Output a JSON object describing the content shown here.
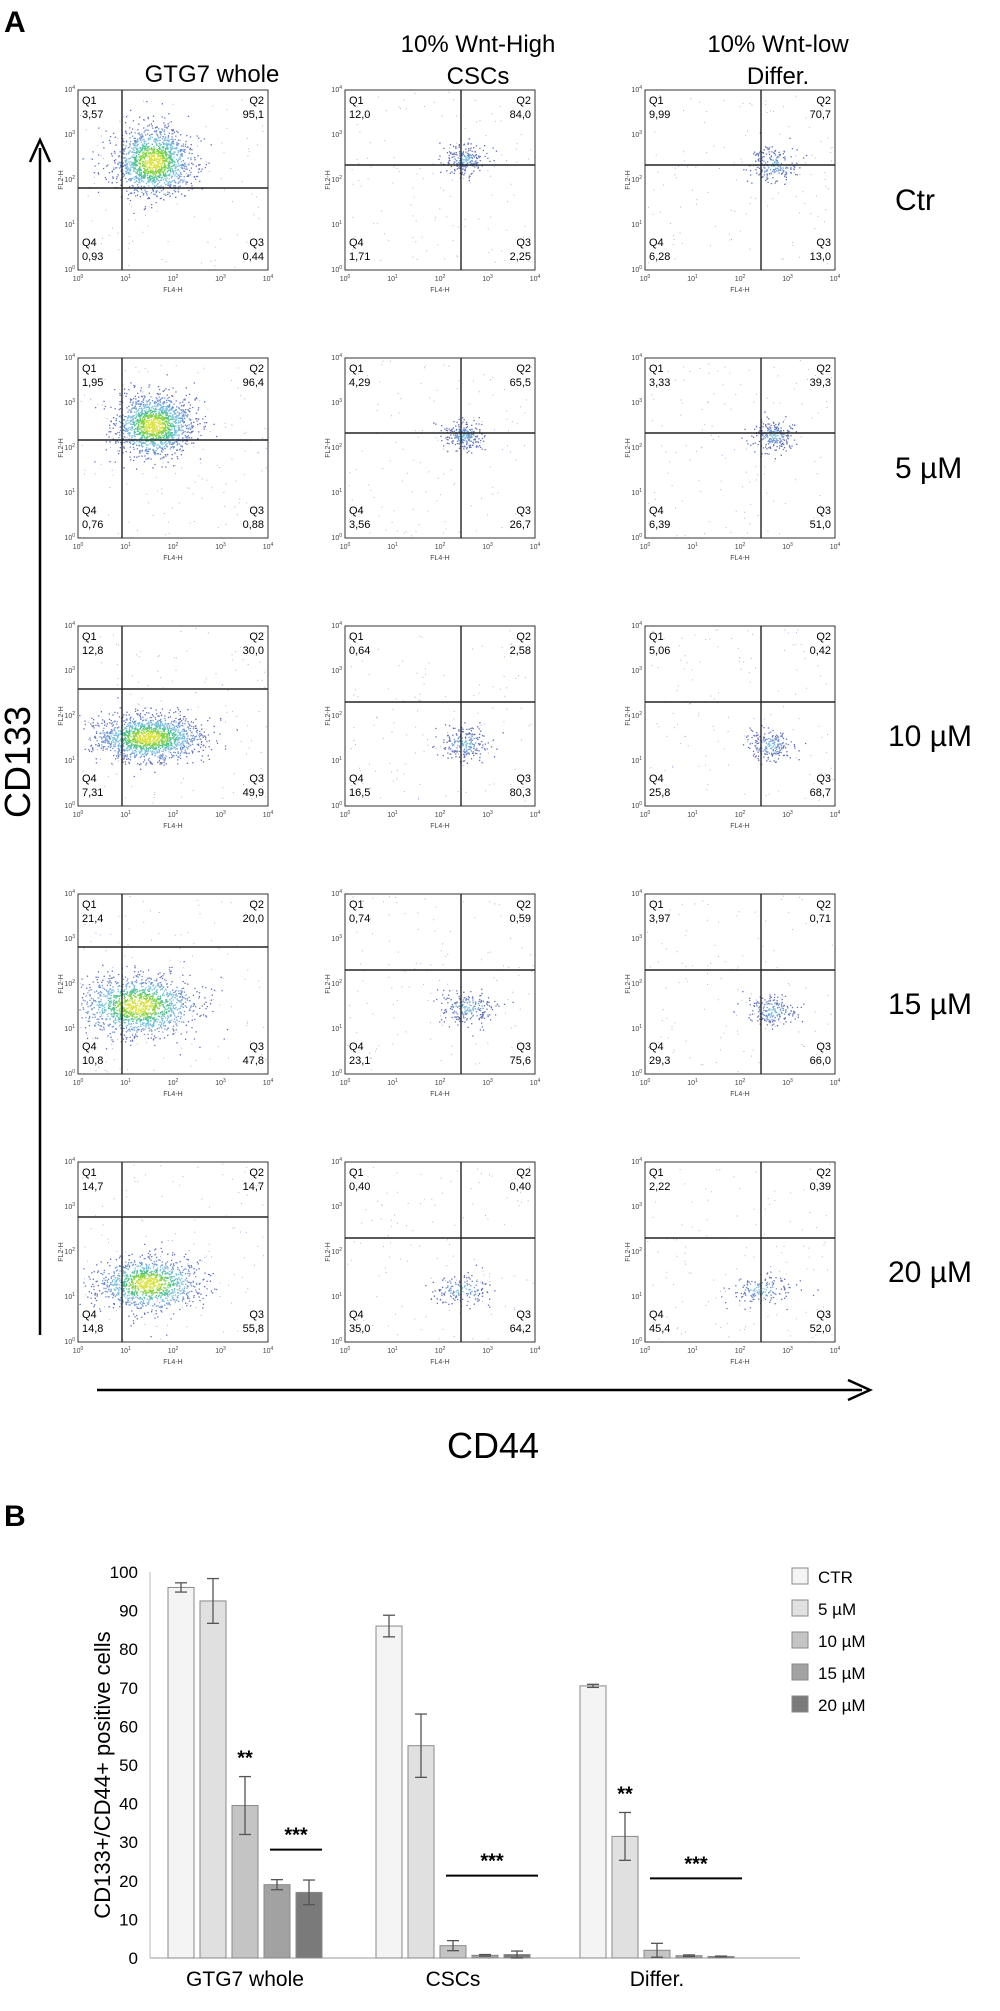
{
  "panel_a": {
    "letter": "A",
    "column_headers": [
      [
        "GTG7 whole"
      ],
      [
        "10% Wnt-High",
        "CSCs"
      ],
      [
        "10% Wnt-low",
        "Differ."
      ]
    ],
    "row_labels": [
      "Ctr",
      "5 µM",
      "10 µM",
      "15 µM",
      "20 µM"
    ],
    "y_axis_label": "CD133",
    "x_axis_label": "CD44",
    "plot_xlabel": "FL4-H",
    "plot_ylabel": "FL2-H",
    "tick_exponents": [
      "0",
      "1",
      "2",
      "3",
      "4"
    ],
    "quadrant_names": [
      "Q1",
      "Q2",
      "Q3",
      "Q4"
    ],
    "plots": [
      [
        {
          "q1": "3,57",
          "q2": "95,1",
          "q3": "0,44",
          "q4": "0,93"
        },
        {
          "q1": "12,0",
          "q2": "84,0",
          "q3": "2,25",
          "q4": "1,71"
        },
        {
          "q1": "9,99",
          "q2": "70,7",
          "q3": "13,0",
          "q4": "6,28"
        }
      ],
      [
        {
          "q1": "1,95",
          "q2": "96,4",
          "q3": "0,88",
          "q4": "0,76"
        },
        {
          "q1": "4,29",
          "q2": "65,5",
          "q3": "26,7",
          "q4": "3,56"
        },
        {
          "q1": "3,33",
          "q2": "39,3",
          "q3": "51,0",
          "q4": "6,39"
        }
      ],
      [
        {
          "q1": "12,8",
          "q2": "30,0",
          "q3": "49,9",
          "q4": "7,31"
        },
        {
          "q1": "0,64",
          "q2": "2,58",
          "q3": "80,3",
          "q4": "16,5"
        },
        {
          "q1": "5,06",
          "q2": "0,42",
          "q3": "68,7",
          "q4": "25,8"
        }
      ],
      [
        {
          "q1": "21,4",
          "q2": "20,0",
          "q3": "47,8",
          "q4": "10,8"
        },
        {
          "q1": "0,74",
          "q2": "0,59",
          "q3": "75,6",
          "q4": "23,1"
        },
        {
          "q1": "3,97",
          "q2": "0,71",
          "q3": "66,0",
          "q4": "29,3"
        }
      ],
      [
        {
          "q1": "14,7",
          "q2": "14,7",
          "q3": "55,8",
          "q4": "14,8"
        },
        {
          "q1": "0,40",
          "q2": "0,40",
          "q3": "64,2",
          "q4": "35,0"
        },
        {
          "q1": "2,22",
          "q2": "0,39",
          "q3": "52,0",
          "q4": "45,4"
        }
      ]
    ]
  },
  "panel_b": {
    "letter": "B"
  },
  "chart_data": {
    "type": "bar",
    "title": "",
    "xlabel": "",
    "ylabel": "CD133+/CD44+  positive cells",
    "ylim": [
      0,
      100
    ],
    "yticks": [
      0,
      10,
      20,
      30,
      40,
      50,
      60,
      70,
      80,
      90,
      100
    ],
    "grid": false,
    "legend_position": "top-right",
    "categories": [
      "GTG7 whole",
      "CSCs",
      "Differ."
    ],
    "series": [
      {
        "name": "CTR",
        "color": "#f4f4f4",
        "values": [
          96,
          86,
          70.5
        ],
        "errors": [
          1.2,
          2.8,
          0.4
        ]
      },
      {
        "name": "5 µM",
        "color": "#e0e0e0",
        "values": [
          92.5,
          55,
          31.5
        ],
        "errors": [
          5.8,
          8.2,
          6.2
        ]
      },
      {
        "name": "10 µM",
        "color": "#c4c4c4",
        "values": [
          39.5,
          3.2,
          2
        ],
        "errors": [
          7.5,
          1.3,
          1.8
        ]
      },
      {
        "name": "15 µM",
        "color": "#a2a2a2",
        "values": [
          19,
          0.7,
          0.6
        ],
        "errors": [
          1.3,
          0.2,
          0.2
        ]
      },
      {
        "name": "20 µM",
        "color": "#7a7a7a",
        "values": [
          17,
          0.9,
          0.4
        ],
        "errors": [
          3.2,
          0.9,
          0.1
        ]
      }
    ],
    "significance": [
      {
        "label": "**",
        "category": 0,
        "over_series": [
          2
        ]
      },
      {
        "label": "***",
        "category": 0,
        "over_series": [
          3,
          4
        ]
      },
      {
        "label": "***",
        "category": 1,
        "over_series": [
          2,
          3,
          4
        ]
      },
      {
        "label": "**",
        "category": 2,
        "over_series": [
          1
        ]
      },
      {
        "label": "***",
        "category": 2,
        "over_series": [
          2,
          3,
          4
        ]
      }
    ]
  },
  "colors": {
    "density_high": "#3dbb4f",
    "density_mid": "#5aa8d8",
    "density_low": "#3048b0",
    "density_peak": "#e8e83a"
  }
}
